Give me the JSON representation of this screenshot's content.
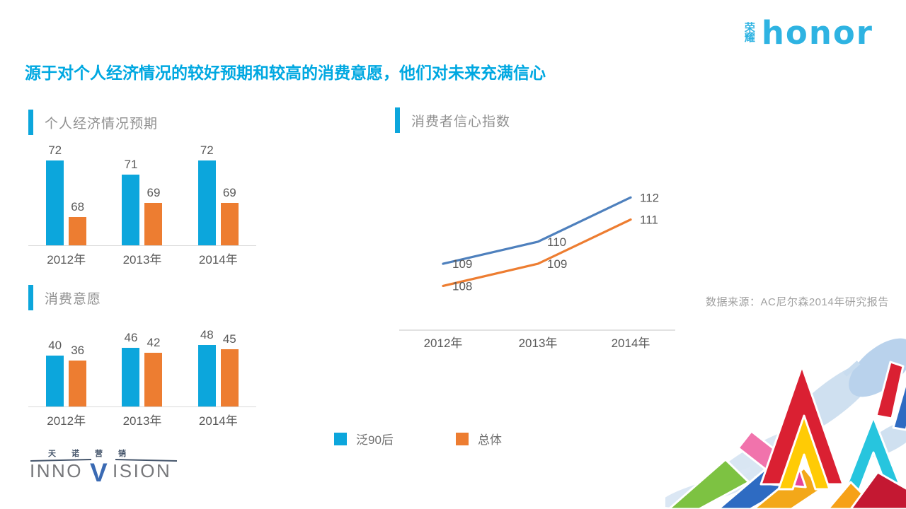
{
  "brand": {
    "cn_top": "荣",
    "cn_bottom": "耀",
    "en": "honor",
    "color": "#2eb3e2"
  },
  "title": "源于对个人经济情况的较好预期和较高的消费意愿，他们对未来充满信心",
  "colors": {
    "accent": "#0ca6dc",
    "title_cyan": "#00a8e1",
    "bar_blue": "#0ca6dc",
    "bar_orange": "#ed7d31",
    "line_blue": "#4e80bd",
    "line_orange": "#ed7d31",
    "axis": "#d9d9d9",
    "value_label": "#595959",
    "header_text": "#8f8f8f"
  },
  "chart_data": [
    {
      "type": "bar",
      "title": "个人经济情况预期",
      "categories": [
        "2012年",
        "2013年",
        "2014年"
      ],
      "series": [
        {
          "name": "泛90后",
          "values": [
            72,
            71,
            72
          ]
        },
        {
          "name": "总体",
          "values": [
            68,
            69,
            69
          ]
        }
      ],
      "ylim": [
        66,
        73.35
      ],
      "grid": false,
      "value_labels": true
    },
    {
      "type": "bar",
      "title": "消费意愿",
      "categories": [
        "2012年",
        "2013年",
        "2014年"
      ],
      "series": [
        {
          "name": "泛90后",
          "values": [
            40,
            46,
            48
          ]
        },
        {
          "name": "总体",
          "values": [
            36,
            42,
            45
          ]
        }
      ],
      "ylim": [
        0,
        61
      ],
      "grid": false,
      "value_labels": true
    },
    {
      "type": "line",
      "title": "消费者信心指数",
      "categories": [
        "2012年",
        "2013年",
        "2014年"
      ],
      "series": [
        {
          "name": "泛90后",
          "values": [
            109,
            110,
            112
          ]
        },
        {
          "name": "总体",
          "values": [
            108,
            109,
            111
          ]
        }
      ],
      "ylim": [
        106,
        113
      ],
      "grid": false,
      "value_labels": true,
      "legend_position": "bottom"
    }
  ],
  "legend": {
    "items": [
      {
        "label": "泛90后",
        "color": "#0ca6dc"
      },
      {
        "label": "总体",
        "color": "#ed7d31"
      }
    ]
  },
  "source_note": "数据来源：AC尼尔森2014年研究报告",
  "footer_logo": {
    "cn": "天诺营销",
    "en_left": "INNO",
    "en_v": "V",
    "en_right": "ISION"
  }
}
